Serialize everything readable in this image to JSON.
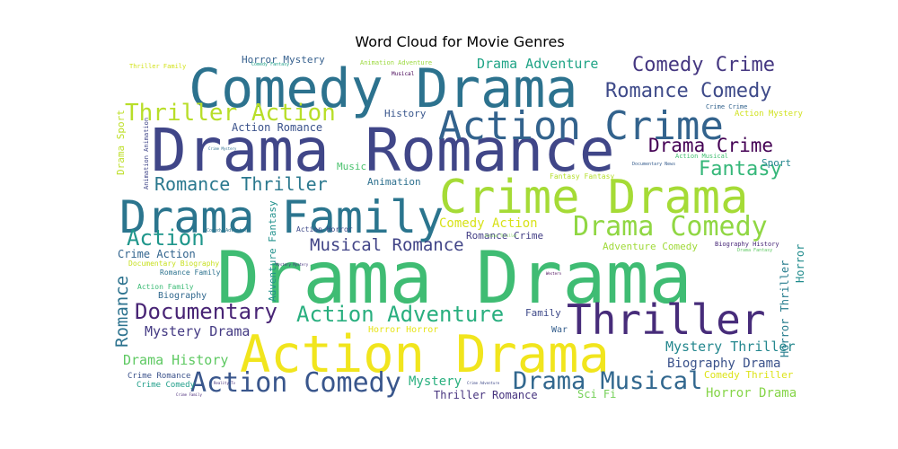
{
  "chart_data": {
    "type": "word cloud",
    "title": "Word Cloud for Movie Genres",
    "background": "#ffffff",
    "colormap": "viridis",
    "words": [
      {
        "text": "Drama Drama",
        "weight": 1.0,
        "color": "#3fbc73"
      },
      {
        "text": "Drama Romance",
        "weight": 0.85,
        "color": "#404688"
      },
      {
        "text": "Action Drama",
        "weight": 0.8,
        "color": "#f1e51d"
      },
      {
        "text": "Comedy Drama",
        "weight": 0.77,
        "color": "#2c728e"
      },
      {
        "text": "Crime Drama",
        "weight": 0.64,
        "color": "#a5db36"
      },
      {
        "text": "Drama Family",
        "weight": 0.62,
        "color": "#2b758e"
      },
      {
        "text": "Action Crime",
        "weight": 0.58,
        "color": "#33638d"
      },
      {
        "text": "Thriller",
        "weight": 0.52,
        "color": "#472c7a"
      },
      {
        "text": "Drama Comedy",
        "weight": 0.42,
        "color": "#90d743"
      },
      {
        "text": "Action Comedy",
        "weight": 0.38,
        "color": "#39568c"
      },
      {
        "text": "Drama Musical",
        "weight": 0.36,
        "color": "#31678e"
      },
      {
        "text": "Thriller Action",
        "weight": 0.36,
        "color": "#b8de29"
      },
      {
        "text": "Action Adventure",
        "weight": 0.32,
        "color": "#29af7f"
      },
      {
        "text": "Documentary",
        "weight": 0.32,
        "color": "#482475"
      },
      {
        "text": "Romance Comedy",
        "weight": 0.3,
        "color": "#3e4a89"
      },
      {
        "text": "Comedy Crime",
        "weight": 0.3,
        "color": "#453781"
      },
      {
        "text": "Action",
        "weight": 0.3,
        "color": "#1f968b"
      },
      {
        "text": "Fantasy",
        "weight": 0.28,
        "color": "#35b779"
      },
      {
        "text": "Drama Crime",
        "weight": 0.27,
        "color": "#440154"
      },
      {
        "text": "Romance Thriller",
        "weight": 0.26,
        "color": "#2a788e"
      },
      {
        "text": "Musical Romance",
        "weight": 0.25,
        "color": "#414487"
      },
      {
        "text": "Drama Adventure",
        "weight": 0.19,
        "color": "#20a486"
      },
      {
        "text": "Mystery Drama",
        "weight": 0.19,
        "color": "#443a83"
      },
      {
        "text": "Drama History",
        "weight": 0.19,
        "color": "#5ec962"
      },
      {
        "text": "Mystery Thriller",
        "weight": 0.19,
        "color": "#24878e"
      },
      {
        "text": "Biography Drama",
        "weight": 0.18,
        "color": "#3b528b"
      },
      {
        "text": "Romance",
        "weight": 0.18,
        "color": "#2c728e"
      },
      {
        "text": "Comedy Action",
        "weight": 0.18,
        "color": "#d8e219"
      },
      {
        "text": "Horror Drama",
        "weight": 0.18,
        "color": "#86d549"
      },
      {
        "text": "Mystery",
        "weight": 0.17,
        "color": "#2ab07f"
      },
      {
        "text": "Thriller Romance",
        "weight": 0.15,
        "color": "#46337e"
      },
      {
        "text": "Horror Thriller",
        "weight": 0.15,
        "color": "#287d8e"
      },
      {
        "text": "Sport",
        "weight": 0.15,
        "color": "#25858e"
      },
      {
        "text": "Horror",
        "weight": 0.14,
        "color": "#228c8d"
      },
      {
        "text": "Action Romance",
        "weight": 0.14,
        "color": "#3b528b"
      },
      {
        "text": "Crime Action",
        "weight": 0.14,
        "color": "#32648e"
      },
      {
        "text": "Romance Crime",
        "weight": 0.13,
        "color": "#433e85"
      },
      {
        "text": "Sci Fi",
        "weight": 0.13,
        "color": "#73d056"
      },
      {
        "text": "Comedy Thriller",
        "weight": 0.12,
        "color": "#dde318"
      },
      {
        "text": "Adventure Comedy",
        "weight": 0.12,
        "color": "#a0da39"
      },
      {
        "text": "Horror Mystery",
        "weight": 0.12,
        "color": "#355f8d"
      },
      {
        "text": "Music",
        "weight": 0.12,
        "color": "#4ac16d"
      },
      {
        "text": "Animation",
        "weight": 0.12,
        "color": "#2d708e"
      },
      {
        "text": "History",
        "weight": 0.11,
        "color": "#39568c"
      },
      {
        "text": "Family",
        "weight": 0.11,
        "color": "#3e4989"
      },
      {
        "text": "Drama Sport",
        "weight": 0.11,
        "color": "#bddf26"
      },
      {
        "text": "Adventure Fantasy",
        "weight": 0.11,
        "color": "#21918c"
      },
      {
        "text": "Biography",
        "weight": 0.1,
        "color": "#31688e"
      },
      {
        "text": "Crime Romance",
        "weight": 0.1,
        "color": "#3b528b"
      },
      {
        "text": "Crime Comedy",
        "weight": 0.1,
        "color": "#1f9e89"
      },
      {
        "text": "Action Mystery",
        "weight": 0.09,
        "color": "#d0e11c"
      },
      {
        "text": "Fantasy Fantasy",
        "weight": 0.09,
        "color": "#b5de2b"
      },
      {
        "text": "Horror Horror",
        "weight": 0.09,
        "color": "#e7e419"
      },
      {
        "text": "War",
        "weight": 0.09,
        "color": "#355f8d"
      },
      {
        "text": "Action Horror",
        "weight": 0.09,
        "color": "#3e4989"
      },
      {
        "text": "Romance Family",
        "weight": 0.08,
        "color": "#2c728e"
      },
      {
        "text": "Action Family",
        "weight": 0.08,
        "color": "#3bbb75"
      },
      {
        "text": "Documentary Biography",
        "weight": 0.08,
        "color": "#c8e020"
      },
      {
        "text": "Biography History",
        "weight": 0.08,
        "color": "#482878"
      },
      {
        "text": "Crime Crime",
        "weight": 0.08,
        "color": "#33638d"
      },
      {
        "text": "Action Musical",
        "weight": 0.08,
        "color": "#42be71"
      },
      {
        "text": "Animation Animation",
        "weight": 0.07,
        "color": "#404688"
      },
      {
        "text": "Animation Adventure",
        "weight": 0.07,
        "color": "#9bd93c"
      },
      {
        "text": "Thriller Family",
        "weight": 0.07,
        "color": "#d2e21b"
      },
      {
        "text": "Musical",
        "weight": 0.07,
        "color": "#440154"
      },
      {
        "text": "Comedy Fantasy",
        "weight": 0.06,
        "color": "#1fa088"
      },
      {
        "text": "Comedy Adventure",
        "weight": 0.06,
        "color": "#2c728e"
      },
      {
        "text": "Documentary News",
        "weight": 0.05,
        "color": "#365c8d"
      },
      {
        "text": "Drama Fantasy",
        "weight": 0.05,
        "color": "#5ec962"
      },
      {
        "text": "Reality Tv",
        "weight": 0.04,
        "color": "#472d7b"
      },
      {
        "text": "Crime Adventure",
        "weight": 0.04,
        "color": "#3e4989"
      },
      {
        "text": "Crime Family",
        "weight": 0.04,
        "color": "#482878"
      },
      {
        "text": "Western",
        "weight": 0.04,
        "color": "#440154"
      },
      {
        "text": "Crime Mystery",
        "weight": 0.04,
        "color": "#2e6f8e"
      },
      {
        "text": "Action Thriller",
        "weight": 0.04,
        "color": "#7ad151"
      },
      {
        "text": "Mystery Mystery",
        "weight": 0.04,
        "color": "#46327e"
      }
    ]
  }
}
